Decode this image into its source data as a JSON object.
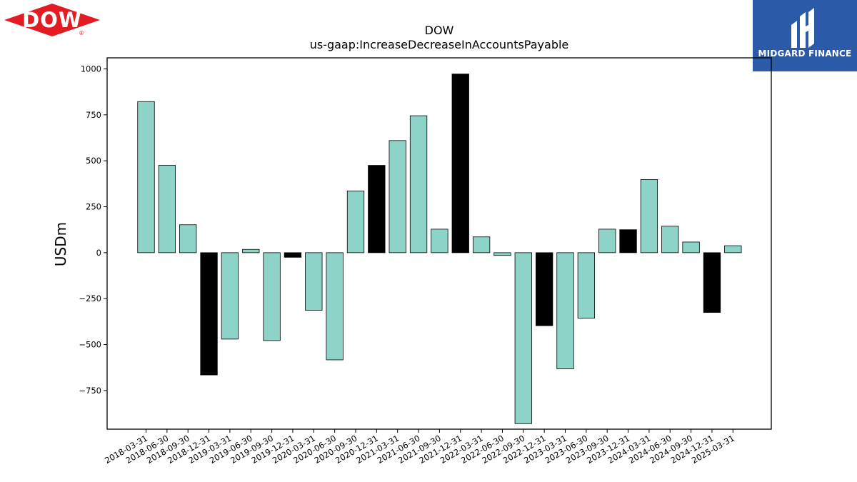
{
  "company_logo": {
    "text": "DOW",
    "registered": "®",
    "color": "#e31c23"
  },
  "brand_logo": {
    "text": "MIDGARD FINANCE",
    "background": "#2b5aa8"
  },
  "chart_data": {
    "type": "bar",
    "title": "DOW",
    "subtitle": "us-gaap:IncreaseDecreaseInAccountsPayable",
    "xlabel": "",
    "ylabel": "USDm",
    "ylim": [
      -960,
      1060
    ],
    "yticks": [
      -750,
      -500,
      -250,
      0,
      250,
      500,
      750,
      1000
    ],
    "ytick_labels": [
      "−750",
      "−500",
      "−250",
      "0",
      "250",
      "500",
      "750",
      "1000"
    ],
    "categories": [
      "2018-03-31",
      "2018-06-30",
      "2018-09-30",
      "2018-12-31",
      "2019-03-31",
      "2019-06-30",
      "2019-09-30",
      "2019-12-31",
      "2020-03-31",
      "2020-06-30",
      "2020-09-30",
      "2020-12-31",
      "2021-03-31",
      "2021-06-30",
      "2021-09-30",
      "2021-12-31",
      "2022-03-31",
      "2022-06-30",
      "2022-09-30",
      "2022-12-31",
      "2023-03-31",
      "2023-06-30",
      "2023-09-30",
      "2023-12-31",
      "2024-03-31",
      "2024-06-30",
      "2024-09-30",
      "2024-12-31",
      "2025-03-31"
    ],
    "values": [
      822,
      475,
      152,
      -665,
      -470,
      18,
      -478,
      -25,
      -313,
      -583,
      336,
      475,
      610,
      745,
      128,
      972,
      86,
      -15,
      -930,
      -397,
      -632,
      -356,
      128,
      125,
      398,
      144,
      58,
      -325,
      38
    ],
    "colors": {
      "q1_q3": "#8dd3c7",
      "q4": "#000000",
      "edge": "#000000"
    },
    "grid": false,
    "legend": "none"
  }
}
